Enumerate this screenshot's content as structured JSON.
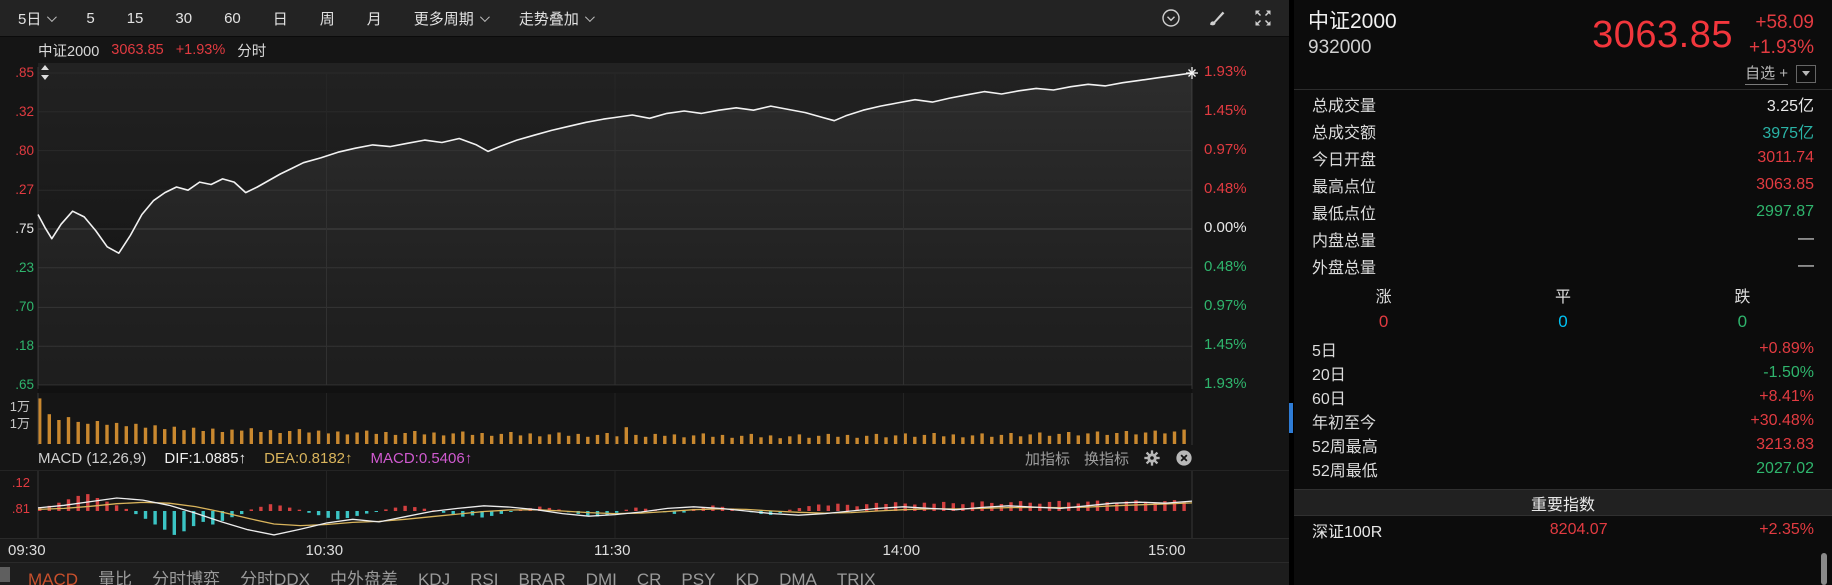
{
  "toolbar": {
    "periods": [
      {
        "label": "5日",
        "dropdown": true
      },
      {
        "label": "5",
        "dropdown": false
      },
      {
        "label": "15",
        "dropdown": false
      },
      {
        "label": "30",
        "dropdown": false
      },
      {
        "label": "60",
        "dropdown": false
      },
      {
        "label": "日",
        "dropdown": false
      },
      {
        "label": "周",
        "dropdown": false
      },
      {
        "label": "月",
        "dropdown": false
      },
      {
        "label": "更多周期",
        "dropdown": true
      },
      {
        "label": "走势叠加",
        "dropdown": true
      }
    ],
    "icons": [
      "history-circle-icon",
      "brush-icon",
      "fullscreen-icon"
    ]
  },
  "chart_header": {
    "name": "中证2000",
    "price": "3063.85",
    "change": "+1.93%",
    "mode": "分时"
  },
  "main_axes": {
    "left": [
      {
        "text": ".85",
        "color": "up"
      },
      {
        "text": ".32",
        "color": "up"
      },
      {
        "text": ".80",
        "color": "up"
      },
      {
        "text": ".27",
        "color": "up"
      },
      {
        "text": ".75",
        "color": "flat"
      },
      {
        "text": ".23",
        "color": "down"
      },
      {
        "text": ".70",
        "color": "down"
      },
      {
        "text": ".18",
        "color": "down"
      },
      {
        "text": ".65",
        "color": "down"
      }
    ],
    "right": [
      {
        "text": "1.93%",
        "color": "up"
      },
      {
        "text": "1.45%",
        "color": "up"
      },
      {
        "text": "0.97%",
        "color": "up"
      },
      {
        "text": "0.48%",
        "color": "up"
      },
      {
        "text": "0.00%",
        "color": "flat"
      },
      {
        "text": "0.48%",
        "color": "down"
      },
      {
        "text": "0.97%",
        "color": "down"
      },
      {
        "text": "1.45%",
        "color": "down"
      },
      {
        "text": "1.93%",
        "color": "down"
      }
    ],
    "time": [
      "09:30",
      "10:30",
      "11:30",
      "14:00",
      "15:00"
    ],
    "volume_left": [
      "1万",
      "1万"
    ],
    "macd_left": [
      ".12",
      ".81"
    ]
  },
  "macd_header": {
    "title": "MACD",
    "params": "(12,26,9)",
    "dif_label": "DIF:1.0885",
    "dea_label": "DEA:0.8182",
    "macd_label": "MACD:0.5406",
    "arrow": "↑",
    "add": "加指标",
    "switch": "换指标"
  },
  "tabs": [
    {
      "label": "MACD",
      "active": true
    },
    {
      "label": "量比",
      "active": false
    },
    {
      "label": "分时博弈",
      "active": false
    },
    {
      "label": "分时DDX",
      "active": false
    },
    {
      "label": "中外盘差",
      "active": false
    },
    {
      "label": "KDJ",
      "active": false
    },
    {
      "label": "RSI",
      "active": false
    },
    {
      "label": "BRAR",
      "active": false
    },
    {
      "label": "DMI",
      "active": false
    },
    {
      "label": "CR",
      "active": false
    },
    {
      "label": "PSY",
      "active": false
    },
    {
      "label": "KD",
      "active": false
    },
    {
      "label": "DMA",
      "active": false
    },
    {
      "label": "TRIX",
      "active": false
    }
  ],
  "quote": {
    "name": "中证2000",
    "code": "932000",
    "price": "3063.85",
    "change": "+58.09",
    "change_pct": "+1.93%",
    "watchlist": "自选 +",
    "stats": [
      {
        "label": "总成交量",
        "value": "3.25亿",
        "color": "flat"
      },
      {
        "label": "总成交额",
        "value": "3975亿",
        "color": "teal"
      },
      {
        "label": "今日开盘",
        "value": "3011.74",
        "color": "up"
      },
      {
        "label": "最高点位",
        "value": "3063.85",
        "color": "up"
      },
      {
        "label": "最低点位",
        "value": "2997.87",
        "color": "down"
      },
      {
        "label": "内盘总量",
        "value": "—",
        "color": "flat"
      },
      {
        "label": "外盘总量",
        "value": "—",
        "color": "flat"
      }
    ],
    "updown": [
      {
        "label": "涨",
        "value": "0",
        "color": "up"
      },
      {
        "label": "平",
        "value": "0",
        "color": "cyan"
      },
      {
        "label": "跌",
        "value": "0",
        "color": "down"
      }
    ],
    "periods": [
      {
        "label": "5日",
        "value": "+0.89%",
        "color": "up"
      },
      {
        "label": "20日",
        "value": "-1.50%",
        "color": "down"
      },
      {
        "label": "60日",
        "value": "+8.41%",
        "color": "up"
      },
      {
        "label": "年初至今",
        "value": "+30.48%",
        "color": "up"
      },
      {
        "label": "52周最高",
        "value": "3213.83",
        "color": "up"
      },
      {
        "label": "52周最低",
        "value": "2027.02",
        "color": "down"
      }
    ],
    "section_title": "重要指数",
    "indices": [
      {
        "name": "深证100R",
        "value": "8204.07",
        "pct": "+2.35%",
        "color": "up"
      }
    ]
  },
  "colors": {
    "up": "#e23b41",
    "down": "#2fb56d",
    "flat": "#e8e8e8",
    "teal": "#2ab3a6",
    "cyan": "#00c3f5",
    "volume": "#c9882f",
    "dea": "#d9b45c",
    "macd_val": "#d05ad0",
    "hist_neg": "#3bc4c4",
    "hist_pos": "#d34040",
    "accent_blue": "#2e7cd6",
    "price_big": "#f2363c"
  },
  "chart_data": {
    "type": "line",
    "title": "中证2000 分时",
    "x_ticks": [
      "09:30",
      "10:30",
      "11:30",
      "14:00",
      "15:00"
    ],
    "right_axis_pct": [
      1.93,
      1.45,
      0.97,
      0.48,
      0.0,
      -0.48,
      -0.97,
      -1.45,
      -1.93
    ],
    "left_axis_visible": [
      ".85",
      ".32",
      ".80",
      ".27",
      ".75",
      ".23",
      ".70",
      ".18",
      ".65"
    ],
    "close_pct": 1.93,
    "price_pct": [
      [
        0.0,
        0.18
      ],
      [
        0.006,
        0.02
      ],
      [
        0.012,
        -0.12
      ],
      [
        0.02,
        0.06
      ],
      [
        0.03,
        0.22
      ],
      [
        0.04,
        0.15
      ],
      [
        0.05,
        -0.02
      ],
      [
        0.06,
        -0.22
      ],
      [
        0.07,
        -0.3
      ],
      [
        0.08,
        -0.08
      ],
      [
        0.09,
        0.18
      ],
      [
        0.1,
        0.35
      ],
      [
        0.11,
        0.45
      ],
      [
        0.12,
        0.52
      ],
      [
        0.13,
        0.48
      ],
      [
        0.14,
        0.58
      ],
      [
        0.15,
        0.55
      ],
      [
        0.16,
        0.62
      ],
      [
        0.17,
        0.58
      ],
      [
        0.18,
        0.45
      ],
      [
        0.19,
        0.52
      ],
      [
        0.2,
        0.6
      ],
      [
        0.21,
        0.68
      ],
      [
        0.22,
        0.75
      ],
      [
        0.23,
        0.82
      ],
      [
        0.245,
        0.88
      ],
      [
        0.26,
        0.95
      ],
      [
        0.275,
        1.0
      ],
      [
        0.29,
        1.04
      ],
      [
        0.305,
        1.02
      ],
      [
        0.32,
        1.06
      ],
      [
        0.335,
        1.1
      ],
      [
        0.35,
        1.07
      ],
      [
        0.365,
        1.12
      ],
      [
        0.38,
        1.04
      ],
      [
        0.39,
        0.96
      ],
      [
        0.4,
        1.02
      ],
      [
        0.415,
        1.1
      ],
      [
        0.43,
        1.16
      ],
      [
        0.445,
        1.22
      ],
      [
        0.46,
        1.27
      ],
      [
        0.475,
        1.32
      ],
      [
        0.49,
        1.36
      ],
      [
        0.5,
        1.38
      ],
      [
        0.515,
        1.41
      ],
      [
        0.53,
        1.37
      ],
      [
        0.545,
        1.43
      ],
      [
        0.56,
        1.46
      ],
      [
        0.575,
        1.43
      ],
      [
        0.59,
        1.47
      ],
      [
        0.605,
        1.5
      ],
      [
        0.62,
        1.47
      ],
      [
        0.635,
        1.52
      ],
      [
        0.65,
        1.48
      ],
      [
        0.665,
        1.44
      ],
      [
        0.68,
        1.38
      ],
      [
        0.69,
        1.34
      ],
      [
        0.7,
        1.4
      ],
      [
        0.715,
        1.47
      ],
      [
        0.73,
        1.52
      ],
      [
        0.745,
        1.56
      ],
      [
        0.76,
        1.6
      ],
      [
        0.775,
        1.57
      ],
      [
        0.79,
        1.62
      ],
      [
        0.805,
        1.66
      ],
      [
        0.82,
        1.7
      ],
      [
        0.835,
        1.67
      ],
      [
        0.85,
        1.71
      ],
      [
        0.865,
        1.74
      ],
      [
        0.88,
        1.72
      ],
      [
        0.895,
        1.76
      ],
      [
        0.91,
        1.79
      ],
      [
        0.925,
        1.77
      ],
      [
        0.94,
        1.81
      ],
      [
        0.955,
        1.84
      ],
      [
        0.97,
        1.87
      ],
      [
        0.985,
        1.9
      ],
      [
        1.0,
        1.93
      ]
    ],
    "volume": [
      0.95,
      0.62,
      0.5,
      0.56,
      0.46,
      0.42,
      0.48,
      0.4,
      0.44,
      0.37,
      0.42,
      0.34,
      0.39,
      0.31,
      0.36,
      0.29,
      0.34,
      0.27,
      0.32,
      0.25,
      0.3,
      0.28,
      0.33,
      0.25,
      0.29,
      0.23,
      0.27,
      0.31,
      0.24,
      0.28,
      0.22,
      0.26,
      0.2,
      0.24,
      0.28,
      0.21,
      0.25,
      0.19,
      0.23,
      0.27,
      0.2,
      0.24,
      0.18,
      0.22,
      0.26,
      0.19,
      0.23,
      0.17,
      0.21,
      0.25,
      0.18,
      0.22,
      0.16,
      0.2,
      0.24,
      0.17,
      0.21,
      0.15,
      0.19,
      0.23,
      0.16,
      0.35,
      0.19,
      0.15,
      0.21,
      0.17,
      0.2,
      0.14,
      0.18,
      0.22,
      0.15,
      0.19,
      0.13,
      0.17,
      0.21,
      0.14,
      0.18,
      0.12,
      0.16,
      0.2,
      0.13,
      0.17,
      0.21,
      0.15,
      0.19,
      0.13,
      0.17,
      0.21,
      0.14,
      0.18,
      0.22,
      0.15,
      0.19,
      0.23,
      0.16,
      0.2,
      0.14,
      0.18,
      0.22,
      0.15,
      0.19,
      0.23,
      0.16,
      0.2,
      0.24,
      0.17,
      0.21,
      0.25,
      0.18,
      0.22,
      0.26,
      0.19,
      0.23,
      0.27,
      0.2,
      0.24,
      0.28,
      0.22,
      0.26,
      0.3
    ],
    "macd": {
      "params": [
        12,
        26,
        9
      ],
      "dif": 1.0885,
      "dea": 0.8182,
      "macd": 0.5406,
      "hist": [
        0.12,
        0.2,
        0.32,
        0.45,
        0.58,
        0.65,
        0.5,
        0.36,
        0.22,
        0.08,
        -0.12,
        -0.3,
        -0.52,
        -0.72,
        -0.92,
        -0.78,
        -0.58,
        -0.42,
        -0.52,
        -0.38,
        -0.24,
        -0.12,
        0.06,
        0.16,
        0.26,
        0.21,
        0.13,
        0.05,
        -0.07,
        -0.16,
        -0.26,
        -0.32,
        -0.27,
        -0.19,
        -0.1,
        -0.04,
        0.06,
        0.13,
        0.2,
        0.15,
        0.09,
        0.03,
        -0.07,
        -0.14,
        -0.22,
        -0.17,
        -0.25,
        -0.19,
        -0.11,
        -0.04,
        0.06,
        0.11,
        0.17,
        0.12,
        0.06,
        -0.05,
        -0.11,
        -0.17,
        -0.21,
        -0.14,
        -0.07,
        0.05,
        0.13,
        0.09,
        0.04,
        -0.05,
        -0.11,
        -0.06,
        0.08,
        0.15,
        0.21,
        0.16,
        0.1,
        0.05,
        -0.05,
        -0.11,
        -0.15,
        -0.08,
        0.05,
        0.11,
        0.19,
        0.25,
        0.21,
        0.28,
        0.24,
        0.18,
        0.26,
        0.31,
        0.27,
        0.34,
        0.29,
        0.25,
        0.32,
        0.28,
        0.35,
        0.3,
        0.26,
        0.33,
        0.37,
        0.31,
        0.27,
        0.34,
        0.38,
        0.32,
        0.28,
        0.35,
        0.39,
        0.33,
        0.29,
        0.36,
        0.4,
        0.34,
        0.3,
        0.37,
        0.41,
        0.35,
        0.31,
        0.38,
        0.42,
        0.36
      ],
      "dif_line": [
        0.12,
        0.22,
        0.36,
        0.5,
        0.42,
        0.22,
        -0.08,
        -0.42,
        -0.72,
        -0.92,
        -0.7,
        -0.46,
        -0.32,
        -0.42,
        -0.22,
        -0.02,
        0.1,
        0.2,
        0.15,
        0.05,
        -0.1,
        -0.2,
        -0.14,
        -0.04,
        0.1,
        0.16,
        0.1,
        0.0,
        -0.1,
        -0.16,
        -0.1,
        0.0,
        0.1,
        0.16,
        0.1,
        0.05,
        0.14,
        0.2,
        0.15,
        0.1,
        0.2,
        0.3,
        0.34,
        0.3,
        0.38
      ],
      "dea_line": [
        0.06,
        0.1,
        0.18,
        0.28,
        0.33,
        0.3,
        0.17,
        -0.04,
        -0.28,
        -0.5,
        -0.56,
        -0.52,
        -0.44,
        -0.4,
        -0.32,
        -0.22,
        -0.12,
        -0.02,
        0.04,
        0.05,
        0.0,
        -0.06,
        -0.1,
        -0.08,
        -0.02,
        0.05,
        0.08,
        0.06,
        0.0,
        -0.05,
        -0.08,
        -0.06,
        0.0,
        0.05,
        0.08,
        0.08,
        0.1,
        0.13,
        0.14,
        0.13,
        0.15,
        0.2,
        0.24,
        0.27,
        0.31
      ]
    }
  }
}
